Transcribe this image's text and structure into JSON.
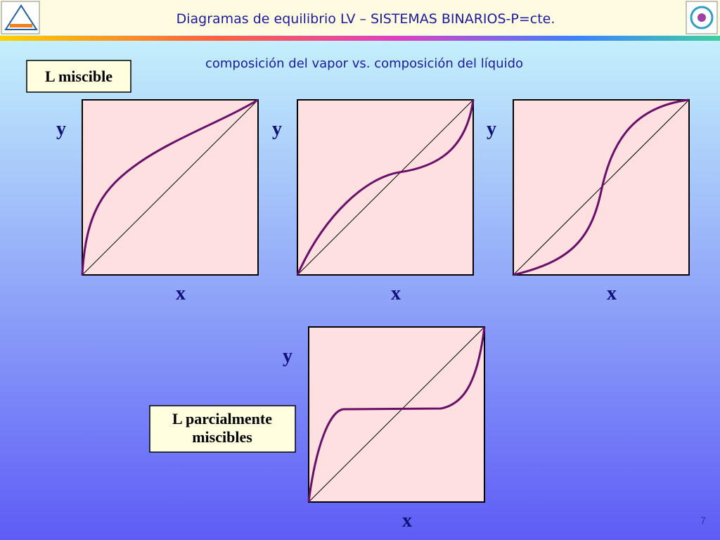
{
  "header": {
    "title": "Diagramas de equilibrio LV – SISTEMAS BINARIOS-P=cte."
  },
  "subtitle": "composición del vapor vs. composición del líquido",
  "labels": [
    "L miscible",
    "L parcialmente miscibles"
  ],
  "panels": [
    {
      "y_label": "y",
      "x_label": "x"
    },
    {
      "y_label": "y",
      "x_label": "x"
    },
    {
      "y_label": "y",
      "x_label": "x"
    },
    {
      "y_label": "y",
      "x_label": "x"
    }
  ],
  "page_number": "7"
}
